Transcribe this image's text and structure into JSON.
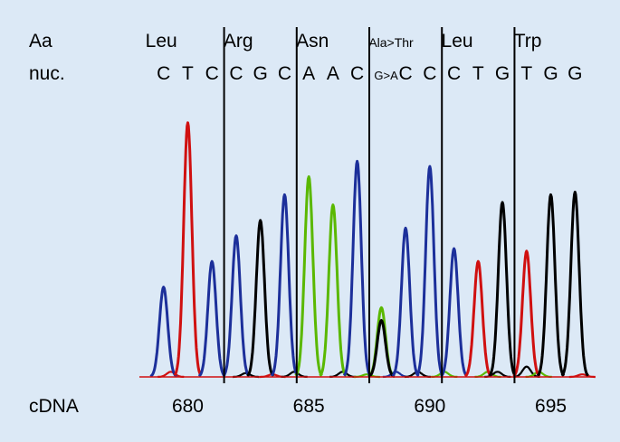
{
  "labels": {
    "aa": "Aa",
    "nuc": "nuc.",
    "cdna": "cDNA"
  },
  "codons": [
    {
      "aa": "Leu",
      "nuc": [
        "C",
        "T",
        "C"
      ]
    },
    {
      "aa": "Arg",
      "nuc": [
        "C",
        "G",
        "C"
      ]
    },
    {
      "aa": "Asn",
      "nuc": [
        "A",
        "A",
        "C"
      ]
    },
    {
      "aa": "Ala>Thr",
      "nuc": [
        "G>A",
        "C",
        "C"
      ]
    },
    {
      "aa": "Leu",
      "nuc": [
        "C",
        "T",
        "G"
      ]
    },
    {
      "aa": "Trp",
      "nuc": [
        "T",
        "G",
        "G"
      ]
    }
  ],
  "colors": {
    "A": "#5ab800",
    "C": "#1c2f9a",
    "G": "#000000",
    "T": "#d01010",
    "background": "#dce9f6"
  },
  "chart_data": {
    "type": "line",
    "xlabel": "cDNA",
    "x_ticks": [
      680,
      685,
      690,
      695
    ],
    "xlim": [
      678,
      696.7
    ],
    "ylim": [
      0,
      1
    ],
    "grid": false,
    "codon_boundaries": [
      681.5,
      684.5,
      687.5,
      690.5,
      693.5
    ],
    "peaks": [
      {
        "pos": 679,
        "base": "C",
        "height": 0.35
      },
      {
        "pos": 680,
        "base": "T",
        "height": 0.99
      },
      {
        "pos": 681,
        "base": "C",
        "height": 0.45
      },
      {
        "pos": 682,
        "base": "C",
        "height": 0.55
      },
      {
        "pos": 683,
        "base": "G",
        "height": 0.61
      },
      {
        "pos": 684,
        "base": "C",
        "height": 0.71
      },
      {
        "pos": 685,
        "base": "A",
        "height": 0.78
      },
      {
        "pos": 686,
        "base": "A",
        "height": 0.67
      },
      {
        "pos": 687,
        "base": "C",
        "height": 0.84
      },
      {
        "pos": 688,
        "base": "A",
        "height": 0.27
      },
      {
        "pos": 688,
        "base": "G",
        "height": 0.22
      },
      {
        "pos": 689,
        "base": "C",
        "height": 0.58
      },
      {
        "pos": 690,
        "base": "C",
        "height": 0.82
      },
      {
        "pos": 691,
        "base": "C",
        "height": 0.5
      },
      {
        "pos": 692,
        "base": "T",
        "height": 0.45
      },
      {
        "pos": 693,
        "base": "G",
        "height": 0.68
      },
      {
        "pos": 694,
        "base": "T",
        "height": 0.49
      },
      {
        "pos": 695,
        "base": "G",
        "height": 0.71
      },
      {
        "pos": 696,
        "base": "G",
        "height": 0.72
      }
    ],
    "noise_peaks": [
      {
        "pos": 679.3,
        "base": "T",
        "height": 0.02
      },
      {
        "pos": 682.4,
        "base": "G",
        "height": 0.015
      },
      {
        "pos": 683.5,
        "base": "T",
        "height": 0.01
      },
      {
        "pos": 684.4,
        "base": "G",
        "height": 0.02
      },
      {
        "pos": 686.4,
        "base": "G",
        "height": 0.02
      },
      {
        "pos": 687.4,
        "base": "A",
        "height": 0.01
      },
      {
        "pos": 688.6,
        "base": "C",
        "height": 0.02
      },
      {
        "pos": 689.5,
        "base": "G",
        "height": 0.02
      },
      {
        "pos": 690.6,
        "base": "A",
        "height": 0.02
      },
      {
        "pos": 692.4,
        "base": "A",
        "height": 0.02
      },
      {
        "pos": 692.8,
        "base": "G",
        "height": 0.02
      },
      {
        "pos": 694.0,
        "base": "G",
        "height": 0.04
      },
      {
        "pos": 694.5,
        "base": "A",
        "height": 0.02
      },
      {
        "pos": 696.3,
        "base": "T",
        "height": 0.01
      }
    ]
  }
}
